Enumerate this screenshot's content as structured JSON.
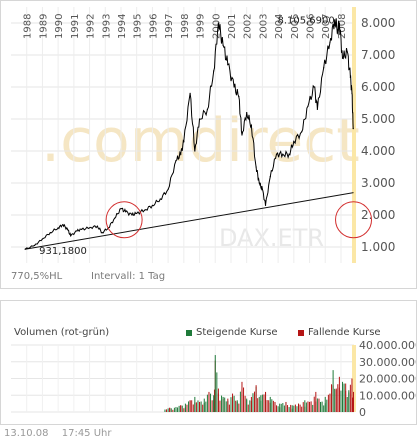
{
  "chart_data": [
    {
      "type": "line",
      "title": "",
      "xlabel": "",
      "ylabel": "",
      "x_range": [
        1987.0,
        2008.83
      ],
      "ylim": [
        500,
        8500
      ],
      "y_ticks": [
        1000,
        2000,
        3000,
        4000,
        5000,
        6000,
        7000,
        8000
      ],
      "y_tick_labels": [
        "1.000",
        "2.000",
        "3.000",
        "4.000",
        "5.000",
        "6.000",
        "7.000",
        "8.000"
      ],
      "x_tick_labels": [
        "1988",
        "1989",
        "1990",
        "1991",
        "1992",
        "1993",
        "1994",
        "1995",
        "1996",
        "1997",
        "1998",
        "1999",
        "2000",
        "2001",
        "2002",
        "2003",
        "2004",
        "2005",
        "2006",
        "2007",
        "2008"
      ],
      "grid": true,
      "series": [
        {
          "points": [
            [
              1987.9,
              931
            ],
            [
              1988.5,
              1050
            ],
            [
              1989.0,
              1250
            ],
            [
              1989.5,
              1450
            ],
            [
              1990.0,
              1600
            ],
            [
              1990.3,
              1700
            ],
            [
              1990.6,
              1550
            ],
            [
              1990.8,
              1350
            ],
            [
              1991.2,
              1500
            ],
            [
              1991.5,
              1550
            ],
            [
              1992.0,
              1600
            ],
            [
              1992.5,
              1650
            ],
            [
              1992.8,
              1450
            ],
            [
              1993.2,
              1600
            ],
            [
              1993.6,
              1900
            ],
            [
              1994.0,
              2200
            ],
            [
              1994.3,
              2100
            ],
            [
              1994.7,
              2000
            ],
            [
              1995.0,
              2050
            ],
            [
              1995.5,
              2150
            ],
            [
              1996.0,
              2300
            ],
            [
              1996.5,
              2500
            ],
            [
              1997.0,
              2800
            ],
            [
              1997.5,
              3700
            ],
            [
              1997.8,
              3900
            ],
            [
              1998.0,
              4300
            ],
            [
              1998.4,
              5800
            ],
            [
              1998.7,
              4000
            ],
            [
              1999.0,
              5000
            ],
            [
              1999.5,
              5300
            ],
            [
              1999.9,
              6500
            ],
            [
              2000.2,
              8000
            ],
            [
              2000.5,
              7300
            ],
            [
              2000.8,
              6700
            ],
            [
              2001.2,
              6000
            ],
            [
              2001.5,
              5700
            ],
            [
              2001.7,
              4500
            ],
            [
              2002.0,
              5200
            ],
            [
              2002.3,
              4800
            ],
            [
              2002.6,
              3500
            ],
            [
              2002.8,
              3000
            ],
            [
              2003.0,
              2800
            ],
            [
              2003.2,
              2300
            ],
            [
              2003.5,
              3200
            ],
            [
              2003.9,
              3900
            ],
            [
              2004.3,
              3900
            ],
            [
              2004.7,
              3900
            ],
            [
              2005.0,
              4300
            ],
            [
              2005.5,
              4600
            ],
            [
              2005.9,
              5400
            ],
            [
              2006.3,
              6000
            ],
            [
              2006.5,
              5300
            ],
            [
              2006.9,
              6600
            ],
            [
              2007.3,
              7400
            ],
            [
              2007.6,
              8100
            ],
            [
              2007.8,
              7800
            ],
            [
              2007.9,
              8000
            ],
            [
              2008.1,
              6900
            ],
            [
              2008.4,
              7100
            ],
            [
              2008.6,
              6300
            ],
            [
              2008.7,
              5800
            ],
            [
              2008.78,
              4700
            ]
          ]
        }
      ],
      "trendline": [
        [
          1987.9,
          931
        ],
        [
          2008.8,
          2700
        ]
      ],
      "highlight_circles": [
        [
          1994.2,
          1850
        ],
        [
          2008.8,
          1850
        ]
      ],
      "annotations": [
        {
          "text": "931,1800",
          "x": 1987.9,
          "y": 931
        },
        {
          "text": "8.105,6900",
          "x": 2007.65,
          "y": 8106
        }
      ],
      "info_labels": [
        "770,5%HL",
        "Intervall: 1 Tag"
      ],
      "watermarks": [
        ".comdirect",
        "DAX.ETR"
      ]
    },
    {
      "type": "bar",
      "title": "Volumen (rot-grün)",
      "ylim": [
        0,
        40000000
      ],
      "y_ticks": [
        0,
        10000000,
        20000000,
        30000000,
        40000000
      ],
      "y_tick_labels": [
        "0",
        "10.000.000",
        "20.000.000",
        "30.000.000",
        "40.000.000"
      ],
      "series": [
        {
          "name": "Steigende Kurse",
          "color": "#1f7a3a"
        },
        {
          "name": "Fallende Kurse",
          "color": "#b51515"
        }
      ],
      "volume_start_year": 1996.8,
      "volume_samples": [
        [
          1996.8,
          1500000,
          0
        ],
        [
          1997.1,
          2500000,
          1
        ],
        [
          1997.5,
          3000000,
          0
        ],
        [
          1997.8,
          4000000,
          1
        ],
        [
          1998.1,
          5000000,
          0
        ],
        [
          1998.4,
          7000000,
          1
        ],
        [
          1998.7,
          9000000,
          0
        ],
        [
          1999.0,
          6000000,
          1
        ],
        [
          1999.3,
          8000000,
          0
        ],
        [
          1999.6,
          12000000,
          1
        ],
        [
          1999.9,
          10000000,
          0
        ],
        [
          2000.0,
          34000000,
          0
        ],
        [
          2000.2,
          14000000,
          1
        ],
        [
          2000.5,
          9000000,
          0
        ],
        [
          2000.8,
          8000000,
          1
        ],
        [
          2001.1,
          11000000,
          1
        ],
        [
          2001.4,
          7000000,
          0
        ],
        [
          2001.7,
          18000000,
          1
        ],
        [
          2002.0,
          8000000,
          0
        ],
        [
          2002.3,
          9000000,
          1
        ],
        [
          2002.6,
          16000000,
          1
        ],
        [
          2002.9,
          10000000,
          0
        ],
        [
          2003.2,
          12000000,
          1
        ],
        [
          2003.5,
          9000000,
          0
        ],
        [
          2003.8,
          6000000,
          1
        ],
        [
          2004.1,
          5000000,
          0
        ],
        [
          2004.5,
          6000000,
          1
        ],
        [
          2004.9,
          4000000,
          0
        ],
        [
          2005.3,
          5000000,
          1
        ],
        [
          2005.7,
          7000000,
          0
        ],
        [
          2006.0,
          6000000,
          1
        ],
        [
          2006.4,
          12000000,
          1
        ],
        [
          2006.7,
          6000000,
          0
        ],
        [
          2007.0,
          9000000,
          0
        ],
        [
          2007.3,
          11000000,
          1
        ],
        [
          2007.5,
          25000000,
          0
        ],
        [
          2007.7,
          14000000,
          1
        ],
        [
          2007.9,
          21000000,
          1
        ],
        [
          2008.1,
          18000000,
          0
        ],
        [
          2008.3,
          17000000,
          1
        ],
        [
          2008.5,
          13000000,
          0
        ],
        [
          2008.7,
          20000000,
          1
        ],
        [
          2008.8,
          12000000,
          1
        ]
      ]
    }
  ],
  "footer": {
    "date": "13.10.08",
    "time": "17:45 Uhr"
  }
}
